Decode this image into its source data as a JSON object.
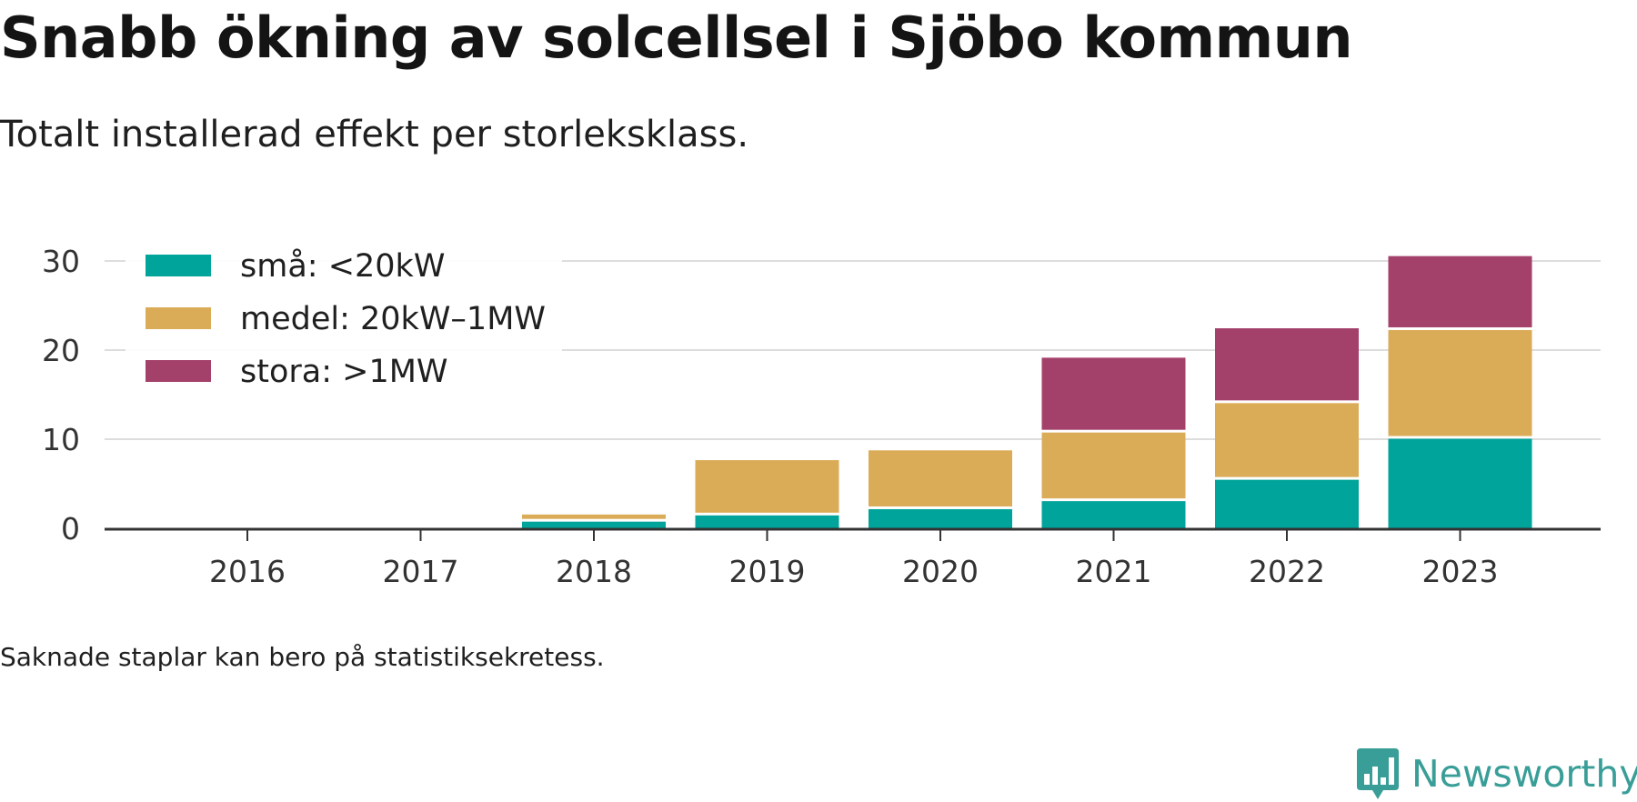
{
  "title": "Snabb ökning av solcellsel i Sjöbo kommun",
  "subtitle": "Totalt installerad effekt per storleksklass.",
  "footnote": "Saknade staplar kan bero på statistiksekretess.",
  "brand": {
    "name": "Newsworthy",
    "logo_icon": "newsworthy-chart-icon",
    "color": "#3a9e98"
  },
  "chart_data": {
    "type": "bar",
    "stacked": true,
    "categories": [
      "2016",
      "2017",
      "2018",
      "2019",
      "2020",
      "2021",
      "2022",
      "2023"
    ],
    "series": [
      {
        "name": "små: <20kW",
        "color": "#00a49a",
        "values": [
          0,
          0,
          0.9,
          1.6,
          2.3,
          3.2,
          5.6,
          10.2
        ]
      },
      {
        "name": "medel: 20kW–1MW",
        "color": "#dbac58",
        "values": [
          0,
          0,
          0.8,
          6.2,
          6.6,
          7.7,
          8.6,
          12.2
        ]
      },
      {
        "name": "stora: >1MW",
        "color": "#a4416a",
        "values": [
          0,
          0,
          0,
          0,
          0,
          8.4,
          8.4,
          8.3
        ]
      }
    ],
    "ylim": [
      0,
      30
    ],
    "yticks": [
      0,
      10,
      20,
      30
    ],
    "xlabel": "",
    "ylabel": "",
    "grid": true,
    "legend": "top-left"
  }
}
